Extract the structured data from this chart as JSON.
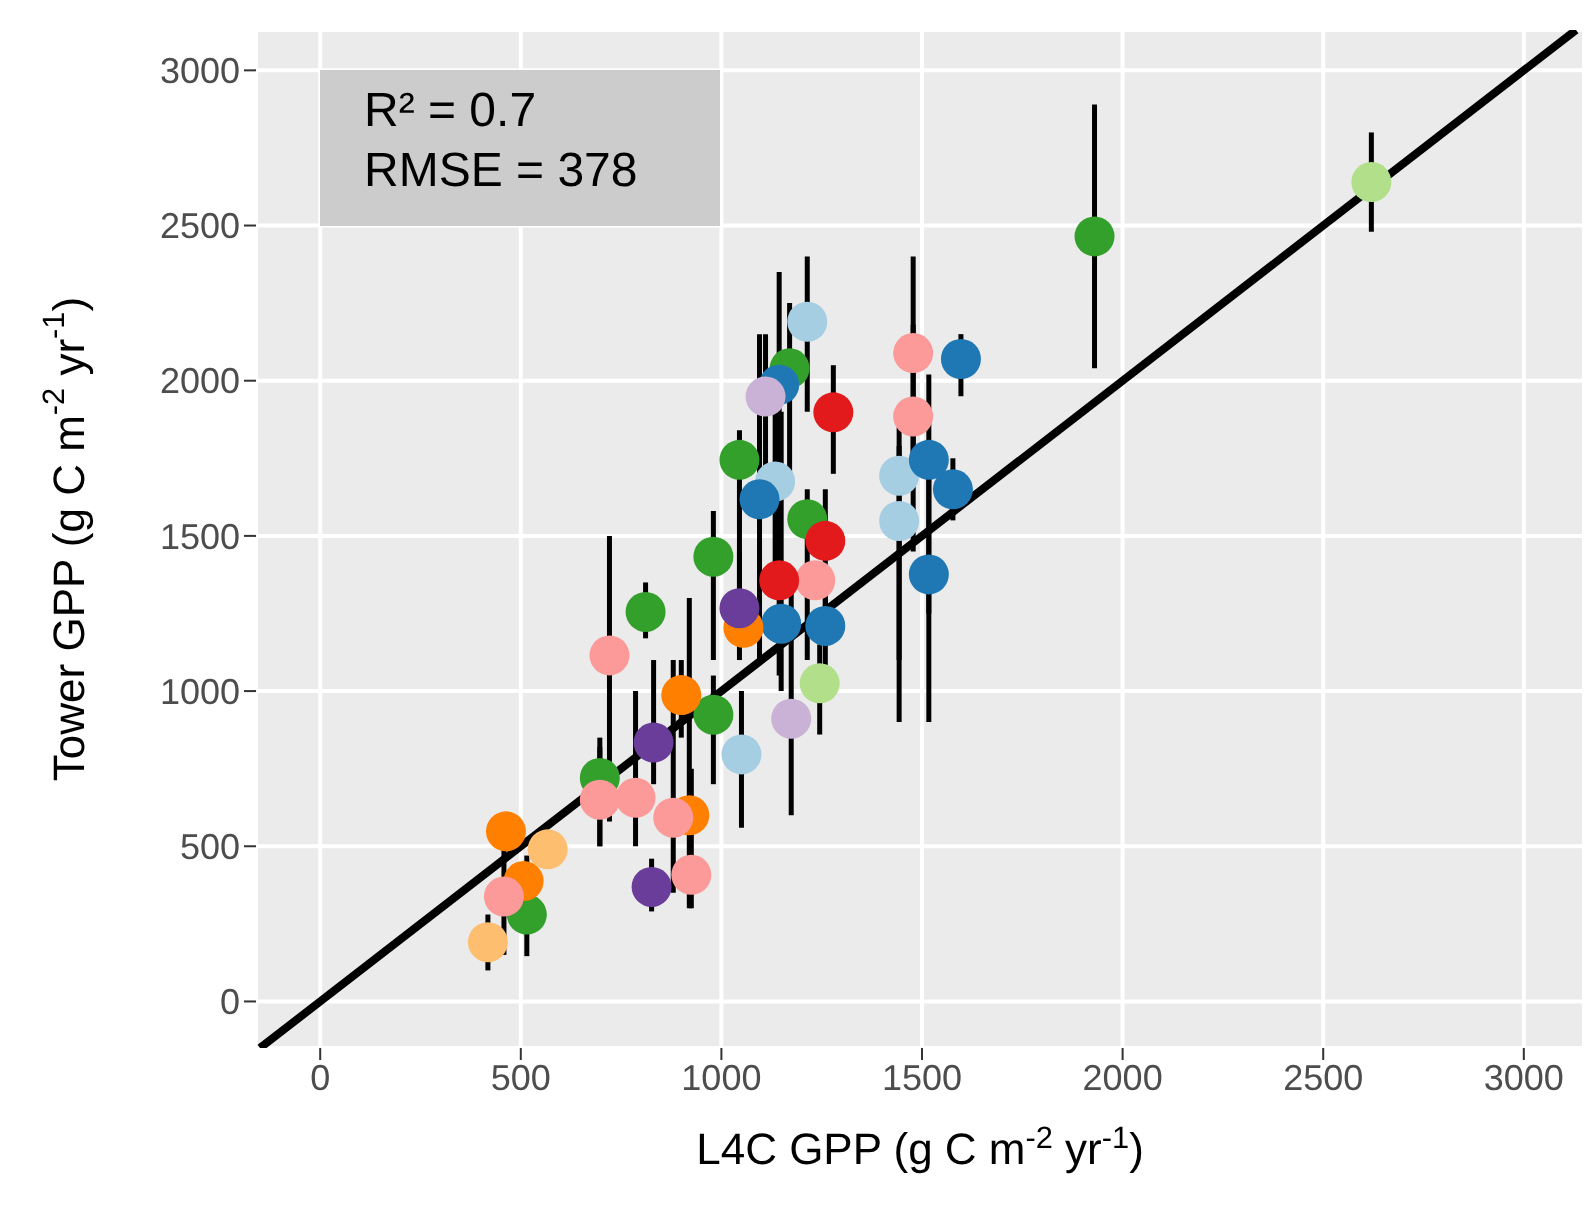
{
  "chart_data": {
    "type": "scatter",
    "xlabel": "L4C GPP (g C m$^{-2}$ yr$^{-1}$)",
    "ylabel": "Tower GPP (g C m$^{-2}$ yr$^{-1}$)",
    "annotations": [
      "R² = 0.7",
      "RMSE = 378"
    ],
    "xlim": [
      -160,
      3150
    ],
    "ylim": [
      -150,
      3130
    ],
    "xticks": [
      0,
      500,
      1000,
      1500,
      2000,
      2500,
      3000
    ],
    "yticks": [
      0,
      500,
      1000,
      1500,
      2000,
      2500,
      3000
    ],
    "grid": true,
    "marker": "circle",
    "series": [
      {
        "color": "#b2df8a",
        "x": [
          2620,
          1245
        ],
        "values": [
          2640,
          1025
        ],
        "errors": [
          [
            2480,
            2800
          ],
          [
            860,
            1150
          ]
        ]
      },
      {
        "color": "#33a02c",
        "x": [
          1930,
          1045,
          1170,
          980,
          811,
          1214,
          980,
          697,
          515
        ],
        "values": [
          2465,
          1745,
          2040,
          1433,
          1255,
          1554,
          924,
          720,
          280
        ],
        "errors": [
          [
            2040,
            2890
          ],
          [
            1150,
            1840
          ],
          [
            1700,
            2250
          ],
          [
            1100,
            1580
          ],
          [
            1170,
            1350
          ],
          [
            1100,
            1650
          ],
          [
            700,
            1050
          ],
          [
            500,
            820
          ],
          [
            146,
            470
          ]
        ]
      },
      {
        "color": "#a6cee3",
        "x": [
          1214,
          1050,
          1443,
          1443,
          1134
        ],
        "values": [
          2190,
          796,
          1694,
          1548,
          1675
        ],
        "errors": [
          [
            1900,
            2400
          ],
          [
            560,
            1000
          ],
          [
            1100,
            1850
          ],
          [
            900,
            1790
          ],
          [
            1300,
            1900
          ]
        ]
      },
      {
        "color": "#1f78b4",
        "x": [
          1597,
          1144,
          1577,
          1517,
          1517,
          1259,
          1149,
          1095
        ],
        "values": [
          2070,
          1987,
          1650,
          1745,
          1376,
          1210,
          1217,
          1618
        ],
        "errors": [
          [
            1950,
            2150
          ],
          [
            1300,
            2350
          ],
          [
            1550,
            1750
          ],
          [
            1250,
            2020
          ],
          [
            900,
            1800
          ],
          [
            1080,
            1380
          ],
          [
            1000,
            1900
          ],
          [
            1100,
            2150
          ]
        ]
      },
      {
        "color": "#ff7f00",
        "x": [
          900,
          463,
          507,
          920,
          1055
        ],
        "values": [
          987,
          548,
          388,
          600,
          1204
        ],
        "errors": [
          [
            850,
            1100
          ],
          null,
          null,
          [
            300,
            1300
          ],
          null
        ]
      },
      {
        "color": "#fdbf6f",
        "x": [
          567,
          418
        ],
        "values": [
          490,
          191
        ],
        "errors": [
          null,
          [
            100,
            280
          ]
        ]
      },
      {
        "color": "#fb9a99",
        "x": [
          1478,
          1478,
          721,
          697,
          786,
          880,
          925,
          458,
          1234
        ],
        "values": [
          2089,
          1885,
          1115,
          650,
          656,
          592,
          408,
          338,
          1357
        ],
        "errors": [
          [
            1750,
            2400
          ],
          [
            1450,
            2180
          ],
          [
            580,
            1500
          ],
          [
            500,
            850
          ],
          [
            500,
            1000
          ],
          [
            350,
            1100
          ],
          [
            300,
            750
          ],
          [
            150,
            500
          ],
          null
        ]
      },
      {
        "color": "#e31a1c",
        "x": [
          1279,
          1259,
          1144
        ],
        "values": [
          1898,
          1484,
          1357
        ],
        "errors": [
          [
            1700,
            2050
          ],
          [
            1150,
            1650
          ],
          [
            1050,
            1750
          ]
        ]
      },
      {
        "color": "#6a3d9a",
        "x": [
          831,
          826,
          1045
        ],
        "values": [
          834,
          369,
          1267
        ],
        "errors": [
          [
            700,
            1100
          ],
          [
            290,
            460
          ],
          [
            1100,
            1450
          ]
        ]
      },
      {
        "color": "#cab2d6",
        "x": [
          1174,
          1110
        ],
        "values": [
          911,
          1949
        ],
        "errors": [
          [
            600,
            1350
          ],
          [
            1700,
            2150
          ]
        ]
      },
      {
        "type": "line",
        "color": "#000000",
        "marker": "none",
        "x": [
          -150,
          3130
        ],
        "values": [
          -150,
          3130
        ]
      }
    ]
  }
}
